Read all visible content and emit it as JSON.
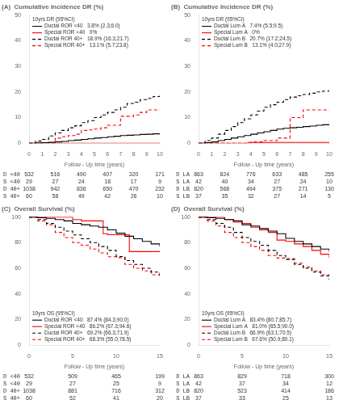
{
  "chart_data": [
    {
      "type": "step",
      "title": "(A)  Cumulative Incidence DR (%)",
      "xlabel": "Follow - Up time (years)",
      "xlim": [
        0,
        10
      ],
      "ylim": [
        0,
        50
      ],
      "xticks": [
        0,
        1,
        2,
        3,
        4,
        5,
        6,
        7,
        8,
        9,
        10
      ],
      "yticks": [
        0,
        10,
        20,
        30,
        40,
        50
      ],
      "grid": false,
      "legend": "upper left",
      "legend_title": "10yrs DR (95%CI)",
      "series": [
        {
          "name": "Ductal ROR <40   3.8% (2.3;6.0)",
          "color": "black",
          "line_style": "solid",
          "x": [
            0,
            0.5,
            1,
            1.5,
            2,
            2.5,
            3,
            3.5,
            4,
            4.5,
            5,
            5.5,
            6,
            6.5,
            7,
            7.5,
            8,
            8.5,
            9,
            9.5,
            10
          ],
          "values": [
            0,
            0.1,
            0.2,
            0.35,
            0.5,
            0.7,
            1.0,
            1.2,
            1.5,
            1.7,
            2.0,
            2.2,
            2.5,
            2.7,
            3.0,
            3.1,
            3.2,
            3.4,
            3.5,
            3.65,
            3.8
          ]
        },
        {
          "name": "Special ROR <40   0%",
          "color": "red",
          "line_style": "solid",
          "x": [
            0,
            10
          ],
          "values": [
            0,
            0
          ]
        },
        {
          "name": "Ductal ROR 40+   18.9% (16.3;21.7)",
          "color": "black",
          "line_style": "dashed",
          "x": [
            0,
            0.5,
            1,
            1.5,
            2,
            2.5,
            3,
            3.5,
            4,
            4.5,
            5,
            5.5,
            6,
            6.5,
            7,
            7.5,
            8,
            8.5,
            9,
            9.5,
            10
          ],
          "values": [
            0,
            0.8,
            1.5,
            2.8,
            4,
            5,
            6,
            6.8,
            8,
            8.8,
            10,
            11,
            12,
            13,
            14,
            15.5,
            16,
            17,
            17.5,
            18.2,
            18.9
          ]
        },
        {
          "name": "Special ROR 40+   13.1% (5.7;23.8)",
          "color": "red",
          "line_style": "dashed",
          "x": [
            0,
            1,
            2,
            2.5,
            3,
            3.5,
            4,
            4.5,
            5,
            5.5,
            6,
            6.5,
            7,
            7.5,
            8,
            8.5,
            9,
            9.5,
            10
          ],
          "values": [
            0,
            0,
            2,
            2.5,
            3,
            3.5,
            5,
            5.2,
            5.5,
            6,
            7,
            7,
            10.5,
            10.5,
            11,
            12,
            13,
            13,
            13.1
          ]
        }
      ],
      "risk_table": {
        "x": [
          0,
          2,
          4,
          6,
          8,
          10
        ],
        "rows": [
          {
            "name": "D <40",
            "values": [
              532,
              516,
              490,
              407,
              320,
              171
            ]
          },
          {
            "name": "S <40",
            "values": [
              29,
              27,
              24,
              18,
              17,
              9
            ]
          },
          {
            "name": "D 40+",
            "values": [
              1038,
              942,
              836,
              650,
              470,
              232
            ]
          },
          {
            "name": "S 40+",
            "values": [
              60,
              58,
              49,
              42,
              26,
              10
            ]
          }
        ]
      }
    },
    {
      "type": "step",
      "title": "(B)  Cumulative Incidence DR (%)",
      "xlabel": "Follow - Up time (years)",
      "xlim": [
        0,
        10
      ],
      "ylim": [
        0,
        50
      ],
      "xticks": [
        0,
        1,
        2,
        3,
        4,
        5,
        6,
        7,
        8,
        9,
        10
      ],
      "yticks": [
        0,
        10,
        20,
        30,
        40,
        50
      ],
      "grid": false,
      "legend": "upper left",
      "legend_title": "10yrs DR (95%CI)",
      "series": [
        {
          "name": "Ductal Lum A   7.4% (5.5;9.5)",
          "color": "black",
          "line_style": "solid",
          "x": [
            0,
            0.5,
            1,
            1.5,
            2,
            2.5,
            3,
            3.5,
            4,
            4.5,
            5,
            5.5,
            6,
            6.5,
            7,
            7.5,
            8,
            8.5,
            9,
            9.5,
            10
          ],
          "values": [
            0,
            0.2,
            0.5,
            1.0,
            1.5,
            2.0,
            2.5,
            3.0,
            3.5,
            4.0,
            4.5,
            5.0,
            5.5,
            5.8,
            6.0,
            6.2,
            6.5,
            6.7,
            7.0,
            7.2,
            7.4
          ]
        },
        {
          "name": "Special Lum A   0%",
          "color": "red",
          "line_style": "solid",
          "x": [
            0,
            3.8,
            3.8,
            10
          ],
          "values": [
            0,
            0,
            0.3,
            0.3
          ]
        },
        {
          "name": "Ductal Lum B   20.7% (17.2;24.5)",
          "color": "black",
          "line_style": "dashed",
          "x": [
            0,
            0.5,
            1,
            1.5,
            2,
            2.5,
            3,
            3.5,
            4,
            4.5,
            5,
            5.5,
            6,
            6.5,
            7,
            7.5,
            8,
            8.5,
            9,
            9.5,
            10
          ],
          "values": [
            0,
            1,
            2,
            3.5,
            5,
            6.5,
            8,
            9.5,
            11,
            12.5,
            14,
            15,
            16,
            17,
            18,
            18.5,
            19,
            19.5,
            20,
            20.3,
            20.7
          ]
        },
        {
          "name": "Special Lum B   13.1% (4.0;27.9)",
          "color": "red",
          "line_style": "dashed",
          "x": [
            0,
            3,
            4,
            5,
            6,
            6.5,
            7,
            7.5,
            8,
            8.5,
            9,
            9.5,
            10
          ],
          "values": [
            0,
            0,
            0.5,
            1,
            2,
            2,
            10,
            10,
            13,
            13,
            13,
            13,
            13.1
          ]
        }
      ],
      "risk_table": {
        "x": [
          0,
          2,
          4,
          6,
          8,
          10
        ],
        "rows": [
          {
            "name": "D LA",
            "values": [
              863,
              824,
              776,
              633,
              485,
              255
            ]
          },
          {
            "name": "S LA",
            "values": [
              42,
              40,
              34,
              27,
              24,
              10
            ]
          },
          {
            "name": "D LB",
            "values": [
              820,
              568,
              494,
              375,
              271,
              130
            ]
          },
          {
            "name": "S LB",
            "values": [
              37,
              35,
              32,
              27,
              14,
              5
            ]
          }
        ]
      }
    },
    {
      "type": "step",
      "title": "(C)  Overall Survival (%)",
      "xlabel": "Follow - Up time (years)",
      "xlim": [
        0,
        15
      ],
      "ylim": [
        0,
        100
      ],
      "xticks": [
        0,
        5,
        10,
        15
      ],
      "yticks": [
        0,
        20,
        40,
        60,
        80,
        100
      ],
      "grid": false,
      "legend": "lower left",
      "legend_title": "10yrs OS (95%CI)",
      "series": [
        {
          "name": "Ductal ROR <40   87.4% (84.3;90.0)",
          "color": "black",
          "line_style": "solid",
          "x": [
            0,
            1,
            2,
            3,
            4,
            5,
            6,
            7,
            8,
            9,
            10,
            11,
            12,
            13,
            14,
            15
          ],
          "values": [
            100,
            99.5,
            99,
            98,
            97,
            95,
            94,
            93,
            92,
            90,
            87.4,
            85,
            83,
            81,
            79,
            77
          ]
        },
        {
          "name": "Special ROR <40   86.2% (67.3;94.6)",
          "color": "red",
          "line_style": "solid",
          "x": [
            0,
            1,
            2,
            3,
            4,
            5,
            6,
            7,
            8,
            8.5,
            9,
            10,
            11,
            11.5,
            12,
            15
          ],
          "values": [
            100,
            100,
            100,
            100,
            100,
            98,
            97,
            97,
            97,
            87,
            86.2,
            86.2,
            86.2,
            73,
            73,
            73
          ]
        },
        {
          "name": "Ductal ROR 40+   69.2% (66.3;71.9)",
          "color": "black",
          "line_style": "dashed",
          "x": [
            0,
            1,
            2,
            3,
            4,
            5,
            6,
            7,
            8,
            9,
            10,
            11,
            12,
            13,
            14,
            15
          ],
          "values": [
            100,
            98,
            95,
            92,
            89,
            86,
            83,
            80,
            77,
            74,
            69.2,
            66,
            63,
            60,
            57,
            53
          ]
        },
        {
          "name": "Special ROR 40+   68.3% (55.0;78.5)",
          "color": "red",
          "line_style": "dashed",
          "x": [
            0,
            1,
            2,
            3,
            4,
            5,
            6,
            7,
            8,
            9,
            10,
            11,
            12,
            13,
            14,
            15
          ],
          "values": [
            100,
            97,
            94,
            88,
            84,
            80,
            78,
            75,
            72,
            69,
            68.3,
            63,
            60,
            58,
            55,
            52
          ]
        }
      ],
      "risk_table": {
        "x": [
          0,
          5,
          10,
          15
        ],
        "rows": [
          {
            "name": "D <40",
            "values": [
              532,
              509,
              465,
              199
            ]
          },
          {
            "name": "S <40",
            "values": [
              29,
              27,
              25,
              9
            ]
          },
          {
            "name": "D 40+",
            "values": [
              1038,
              881,
              716,
              312
            ]
          },
          {
            "name": "S 40+",
            "values": [
              60,
              52,
              41,
              20
            ]
          }
        ]
      }
    },
    {
      "type": "step",
      "title": "(D)  Overall Survival (%)",
      "xlabel": "Follow - Up time (years)",
      "xlim": [
        0,
        15
      ],
      "ylim": [
        0,
        100
      ],
      "xticks": [
        0,
        5,
        10,
        15
      ],
      "yticks": [
        0,
        20,
        40,
        60,
        80,
        100
      ],
      "grid": false,
      "legend": "lower left",
      "legend_title": "10yrs OS (95%CI)",
      "series": [
        {
          "name": "Ductal Lum A   83.4% (80.7;85.7)",
          "color": "black",
          "line_style": "solid",
          "x": [
            0,
            1,
            2,
            3,
            4,
            5,
            6,
            7,
            8,
            9,
            10,
            11,
            12,
            13,
            14,
            15
          ],
          "values": [
            100,
            99.5,
            99,
            98,
            97,
            94,
            93,
            91,
            89,
            87,
            83.4,
            81,
            79,
            77,
            75,
            73
          ]
        },
        {
          "name": "Special Lum A   81.0% (65.5;90.0)",
          "color": "red",
          "line_style": "solid",
          "x": [
            0,
            1,
            2,
            3,
            4,
            5,
            6,
            7,
            8,
            9,
            10,
            11,
            12,
            13,
            14,
            15
          ],
          "values": [
            100,
            100,
            100,
            98,
            96,
            95,
            92,
            90,
            88,
            82,
            81.0,
            79,
            77,
            74,
            71,
            68
          ]
        },
        {
          "name": "Ductal Lum B   66.9% (63.1;70.5)",
          "color": "black",
          "line_style": "dashed",
          "x": [
            0,
            1,
            2,
            3,
            4,
            5,
            6,
            7,
            8,
            9,
            10,
            11,
            12,
            13,
            14,
            15
          ],
          "values": [
            100,
            98,
            95,
            92,
            88,
            84,
            81,
            78,
            74,
            70,
            66.9,
            63,
            60,
            57,
            54,
            51
          ]
        },
        {
          "name": "Special Lum B   67.6% (50.9;80.1)",
          "color": "red",
          "line_style": "dashed",
          "x": [
            0,
            1,
            2,
            3,
            4,
            5,
            6,
            7,
            8,
            9,
            10,
            11,
            12,
            13,
            14,
            15
          ],
          "values": [
            100,
            97,
            93,
            88,
            84,
            80,
            77,
            74,
            70,
            68,
            67.6,
            64,
            61,
            58,
            55,
            52
          ]
        }
      ],
      "risk_table": {
        "x": [
          0,
          5,
          10,
          15
        ],
        "rows": [
          {
            "name": "D LA",
            "values": [
              863,
              829,
              718,
              300
            ]
          },
          {
            "name": "S LA",
            "values": [
              42,
              37,
              34,
              12
            ]
          },
          {
            "name": "D LB",
            "values": [
              820,
              523,
              414,
              186
            ]
          },
          {
            "name": "S LB",
            "values": [
              37,
              33,
              25,
              13
            ]
          }
        ]
      }
    }
  ]
}
